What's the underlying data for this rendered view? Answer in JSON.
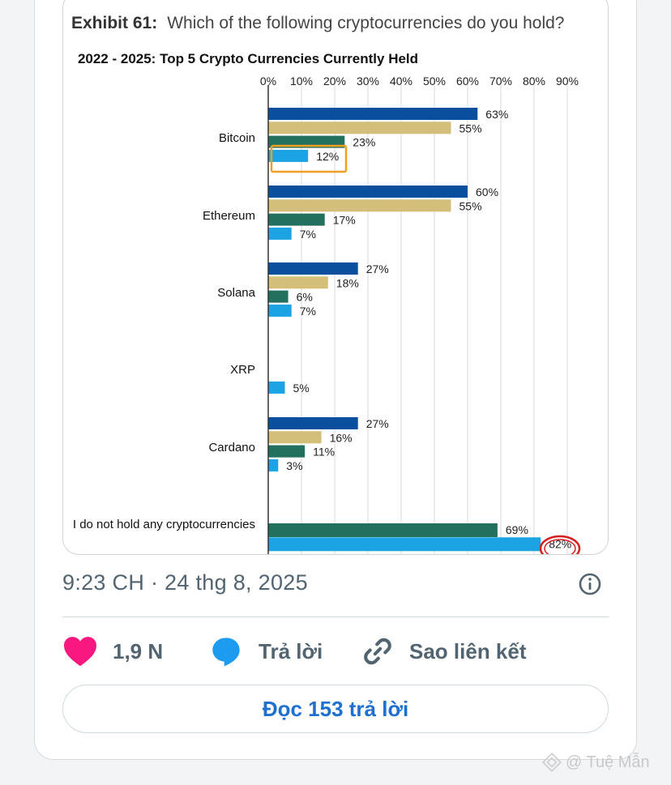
{
  "exhibit": {
    "label": "Exhibit 61:",
    "question": "Which of the following cryptocurrencies do you hold?"
  },
  "chart_data": {
    "type": "bar",
    "orientation": "horizontal",
    "title": "2022 - 2025: Top 5 Crypto Currencies Currently Held",
    "x_ticks": [
      "0%",
      "10%",
      "20%",
      "30%",
      "40%",
      "50%",
      "60%",
      "70%",
      "80%",
      "90%"
    ],
    "xlim": [
      0,
      90
    ],
    "grid": true,
    "categories": [
      "Bitcoin",
      "Ethereum",
      "Solana",
      "XRP",
      "Cardano",
      "I do not hold any cryptocurrencies"
    ],
    "series": [
      {
        "color": "#0a4f9e",
        "values": [
          63,
          60,
          27,
          null,
          27,
          null
        ],
        "labels": [
          "63%",
          "60%",
          "27%",
          "",
          "27%",
          ""
        ]
      },
      {
        "color": "#d4bf7a",
        "values": [
          55,
          55,
          18,
          null,
          16,
          null
        ],
        "labels": [
          "55%",
          "55%",
          "18%",
          "",
          "16%",
          ""
        ]
      },
      {
        "color": "#22705d",
        "values": [
          23,
          17,
          6,
          null,
          11,
          69
        ],
        "labels": [
          "23%",
          "17%",
          "6%",
          "",
          "11%",
          "69%"
        ]
      },
      {
        "color": "#1ba3e3",
        "values": [
          12,
          7,
          7,
          5,
          3,
          82
        ],
        "labels": [
          "12%",
          "7%",
          "7%",
          "5%",
          "3%",
          "82%"
        ]
      }
    ],
    "highlight_box_color": "#f0a020",
    "highlight_circle_color": "#d81e1e"
  },
  "timestamp": "9:23 CH · 24 thg 8, 2025",
  "actions": {
    "likes": "1,9 N",
    "reply": "Trả lời",
    "copy_link": "Sao liên kết"
  },
  "read_replies": "Đọc 153 trả lời",
  "watermark": "@ Tuệ Mẫn",
  "colors": {
    "like": "#f91880",
    "reply": "#1d9bf0",
    "muted": "#536471",
    "link": "#1d6fd0"
  }
}
